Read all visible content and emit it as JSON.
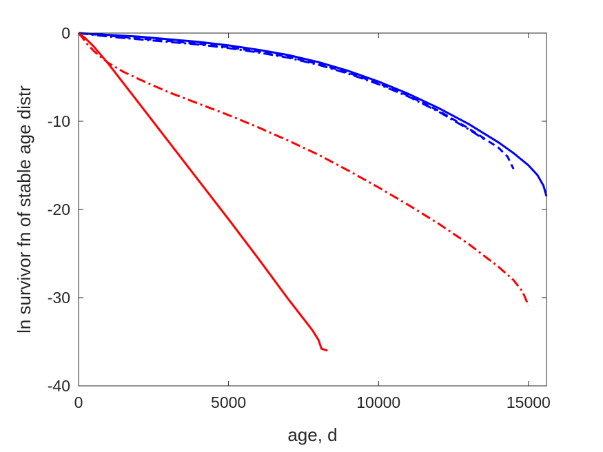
{
  "chart_data": {
    "type": "line",
    "xlabel": "age, d",
    "ylabel": "ln survivor fn of stable age distr",
    "xlim": [
      0,
      15600
    ],
    "ylim": [
      -40,
      0
    ],
    "xticks": [
      0,
      5000,
      10000,
      15000
    ],
    "yticks": [
      0,
      -10,
      -20,
      -30,
      -40
    ],
    "xtick_labels": [
      "0",
      "5000",
      "10000",
      "15000"
    ],
    "ytick_labels": [
      "0",
      "-10",
      "-20",
      "-30",
      "-40"
    ],
    "grid": false,
    "series": [
      {
        "color": "#0000ff",
        "style": "solid",
        "x": [
          0,
          1000,
          2000,
          3000,
          4000,
          5000,
          6000,
          7000,
          8000,
          9000,
          10000,
          11000,
          12000,
          13000,
          14000,
          14500,
          15000,
          15300,
          15500,
          15600
        ],
        "y": [
          0,
          -0.2,
          -0.4,
          -0.7,
          -1.0,
          -1.4,
          -1.9,
          -2.5,
          -3.3,
          -4.3,
          -5.5,
          -6.9,
          -8.5,
          -10.3,
          -12.4,
          -13.6,
          -15.0,
          -16.1,
          -17.3,
          -18.5
        ]
      },
      {
        "color": "#0000ff",
        "style": "dash",
        "x": [
          0,
          1000,
          2000,
          3000,
          4000,
          5000,
          6000,
          7000,
          8000,
          9000,
          10000,
          11000,
          12000,
          13000,
          13500,
          14000,
          14300,
          14500
        ],
        "y": [
          0,
          -0.3,
          -0.6,
          -0.9,
          -1.2,
          -1.6,
          -2.1,
          -2.7,
          -3.5,
          -4.5,
          -5.7,
          -7.1,
          -8.8,
          -10.8,
          -11.9,
          -13.0,
          -14.0,
          -15.4
        ]
      },
      {
        "color": "#0000ff",
        "style": "dashdot",
        "x": [
          0,
          1000,
          2000,
          3000,
          4000,
          5000,
          6000,
          7000,
          8000,
          9000,
          10000,
          11000,
          12000,
          13000,
          13600
        ],
        "y": [
          0,
          -0.4,
          -0.7,
          -1.0,
          -1.3,
          -1.7,
          -2.2,
          -2.8,
          -3.6,
          -4.6,
          -5.8,
          -7.2,
          -8.9,
          -10.9,
          -12.2
        ]
      },
      {
        "color": "#ff0000",
        "style": "solid",
        "x": [
          0,
          200,
          500,
          1000,
          2000,
          3000,
          4000,
          5000,
          6000,
          7000,
          7800,
          8000,
          8100,
          8300
        ],
        "y": [
          0,
          -0.5,
          -1.5,
          -3.5,
          -7.9,
          -12.3,
          -16.7,
          -21.1,
          -25.6,
          -30.2,
          -33.7,
          -34.8,
          -35.8,
          -36.0
        ]
      },
      {
        "color": "#ff0000",
        "style": "dashdot",
        "x": [
          0,
          100,
          300,
          500,
          700,
          1000,
          1500,
          2000,
          3000,
          4000,
          5000,
          6000,
          7000,
          8000,
          9000,
          10000,
          11000,
          12000,
          13000,
          14000,
          14500,
          14800,
          15000
        ],
        "y": [
          0,
          -0.4,
          -1.3,
          -2.0,
          -2.6,
          -3.4,
          -4.4,
          -5.2,
          -6.7,
          -8.0,
          -9.3,
          -10.7,
          -12.2,
          -13.8,
          -15.6,
          -17.5,
          -19.5,
          -21.6,
          -23.9,
          -26.5,
          -28.0,
          -29.3,
          -30.9
        ]
      }
    ]
  }
}
